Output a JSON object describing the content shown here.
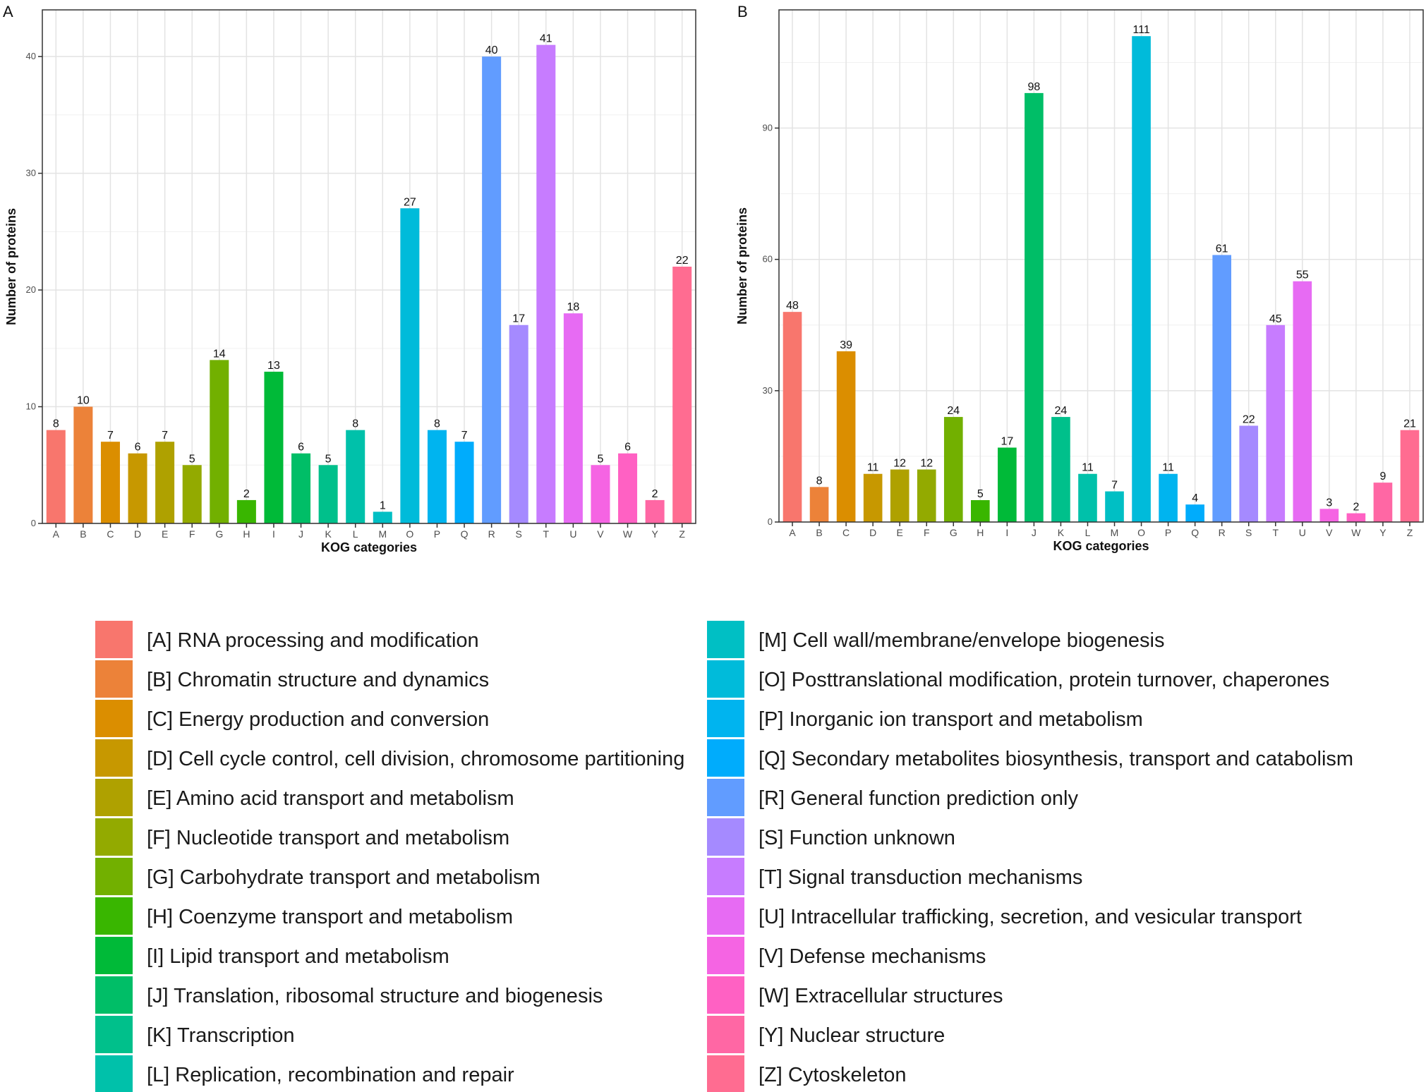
{
  "chart_data": [
    {
      "panel": "A",
      "type": "bar",
      "xlabel": "KOG categories",
      "ylabel": "Number of proteins",
      "ylim": [
        0,
        44
      ],
      "yticks": [
        0,
        10,
        20,
        30,
        40
      ],
      "grid": true,
      "categories": [
        "A",
        "B",
        "C",
        "D",
        "E",
        "F",
        "G",
        "H",
        "I",
        "J",
        "K",
        "L",
        "M",
        "O",
        "P",
        "Q",
        "R",
        "S",
        "T",
        "U",
        "V",
        "W",
        "Y",
        "Z"
      ],
      "values": [
        8,
        10,
        7,
        6,
        7,
        5,
        14,
        2,
        13,
        6,
        5,
        8,
        1,
        27,
        8,
        7,
        40,
        17,
        41,
        18,
        5,
        6,
        2,
        22
      ]
    },
    {
      "panel": "B",
      "type": "bar",
      "xlabel": "KOG categories",
      "ylabel": "Number of proteins",
      "ylim": [
        0,
        117
      ],
      "yticks": [
        0,
        30,
        60,
        90
      ],
      "grid": true,
      "categories": [
        "A",
        "B",
        "C",
        "D",
        "E",
        "F",
        "G",
        "H",
        "I",
        "J",
        "K",
        "L",
        "M",
        "O",
        "P",
        "Q",
        "R",
        "S",
        "T",
        "U",
        "V",
        "W",
        "Y",
        "Z"
      ],
      "values": [
        48,
        8,
        39,
        11,
        12,
        12,
        24,
        5,
        17,
        98,
        24,
        11,
        7,
        111,
        11,
        4,
        61,
        22,
        45,
        55,
        3,
        2,
        9,
        21
      ]
    }
  ],
  "colors": {
    "A": "#F8766D",
    "B": "#EC8239",
    "C": "#DB8E00",
    "D": "#C79800",
    "E": "#AFA100",
    "F": "#93AA00",
    "G": "#72B000",
    "H": "#39B600",
    "I": "#00BA38",
    "J": "#00BE67",
    "K": "#00C08B",
    "L": "#00C1AA",
    "M": "#00BFC4",
    "O": "#00BBDA",
    "P": "#00B4EF",
    "Q": "#00ACFC",
    "R": "#619CFF",
    "S": "#A58AFF",
    "T": "#C77CFF",
    "U": "#E76BF3",
    "V": "#F564E3",
    "W": "#FF61C3",
    "Y": "#FF67A4",
    "Z": "#FF6C91"
  },
  "legend": {
    "left": [
      {
        "code": "A",
        "label": "[A] RNA processing and modification"
      },
      {
        "code": "B",
        "label": "[B] Chromatin structure and dynamics"
      },
      {
        "code": "C",
        "label": "[C] Energy production and conversion"
      },
      {
        "code": "D",
        "label": "[D] Cell cycle control, cell division, chromosome partitioning"
      },
      {
        "code": "E",
        "label": "[E] Amino acid transport and metabolism"
      },
      {
        "code": "F",
        "label": "[F] Nucleotide transport and metabolism"
      },
      {
        "code": "G",
        "label": "[G] Carbohydrate transport and metabolism"
      },
      {
        "code": "H",
        "label": "[H] Coenzyme transport and metabolism"
      },
      {
        "code": "I",
        "label": "[I] Lipid transport and metabolism"
      },
      {
        "code": "J",
        "label": "[J] Translation, ribosomal structure and biogenesis"
      },
      {
        "code": "K",
        "label": "[K] Transcription"
      },
      {
        "code": "L",
        "label": "[L] Replication, recombination and repair"
      }
    ],
    "right": [
      {
        "code": "M",
        "label": "[M] Cell wall/membrane/envelope biogenesis"
      },
      {
        "code": "O",
        "label": "[O] Posttranslational modification, protein turnover, chaperones"
      },
      {
        "code": "P",
        "label": "[P] Inorganic ion transport and metabolism"
      },
      {
        "code": "Q",
        "label": "[Q] Secondary metabolites biosynthesis, transport and catabolism"
      },
      {
        "code": "R",
        "label": "[R] General function prediction only"
      },
      {
        "code": "S",
        "label": "[S] Function unknown"
      },
      {
        "code": "T",
        "label": "[T] Signal transduction mechanisms"
      },
      {
        "code": "U",
        "label": "[U] Intracellular trafficking, secretion, and vesicular transport"
      },
      {
        "code": "V",
        "label": "[V] Defense mechanisms"
      },
      {
        "code": "W",
        "label": "[W] Extracellular structures"
      },
      {
        "code": "Y",
        "label": "[Y] Nuclear structure"
      },
      {
        "code": "Z",
        "label": "[Z] Cytoskeleton"
      }
    ]
  }
}
